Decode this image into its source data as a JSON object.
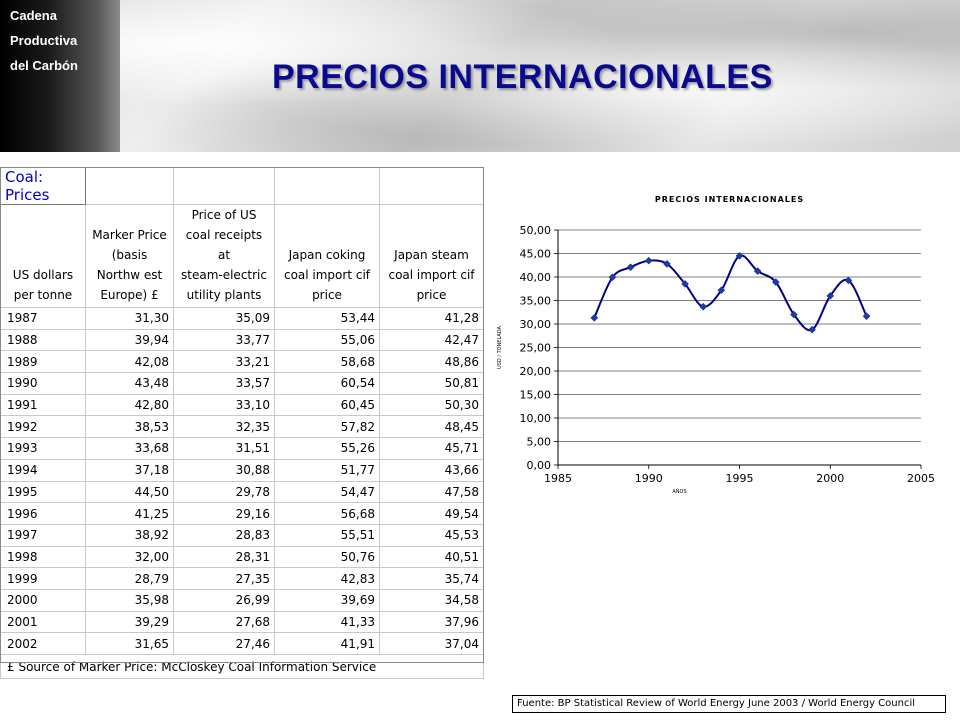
{
  "header": {
    "brand_lines": [
      "Cadena",
      "Productiva",
      "del Carbón"
    ],
    "title": "PRECIOS INTERNACIONALES"
  },
  "table": {
    "title": "Coal:  Prices",
    "columns": [
      "US dollars per tonne",
      "Marker Price (basis Northwest Europe) £",
      "Price of US coal receipts at steam-electric utility plants",
      "Japan coking coal import cif price",
      "Japan steam coal import cif price"
    ],
    "header_lines": [
      [
        "US dollars",
        "per tonne"
      ],
      [
        "Marker Price",
        "(basis",
        "Northw est",
        "Europe) £"
      ],
      [
        "Price of US",
        "coal receipts at",
        "steam-electric",
        "utility plants"
      ],
      [
        "Japan coking",
        "coal import cif",
        "price"
      ],
      [
        "Japan steam",
        "coal import cif",
        "price"
      ]
    ],
    "rows": [
      [
        "1987",
        "31,30",
        "35,09",
        "53,44",
        "41,28"
      ],
      [
        "1988",
        "39,94",
        "33,77",
        "55,06",
        "42,47"
      ],
      [
        "1989",
        "42,08",
        "33,21",
        "58,68",
        "48,86"
      ],
      [
        "1990",
        "43,48",
        "33,57",
        "60,54",
        "50,81"
      ],
      [
        "1991",
        "42,80",
        "33,10",
        "60,45",
        "50,30"
      ],
      [
        "1992",
        "38,53",
        "32,35",
        "57,82",
        "48,45"
      ],
      [
        "1993",
        "33,68",
        "31,51",
        "55,26",
        "45,71"
      ],
      [
        "1994",
        "37,18",
        "30,88",
        "51,77",
        "43,66"
      ],
      [
        "1995",
        "44,50",
        "29,78",
        "54,47",
        "47,58"
      ],
      [
        "1996",
        "41,25",
        "29,16",
        "56,68",
        "49,54"
      ],
      [
        "1997",
        "38,92",
        "28,83",
        "55,51",
        "45,53"
      ],
      [
        "1998",
        "32,00",
        "28,31",
        "50,76",
        "40,51"
      ],
      [
        "1999",
        "28,79",
        "27,35",
        "42,83",
        "35,74"
      ],
      [
        "2000",
        "35,98",
        "26,99",
        "39,69",
        "34,58"
      ],
      [
        "2001",
        "39,29",
        "27,68",
        "41,33",
        "37,96"
      ],
      [
        "2002",
        "31,65",
        "27,46",
        "41,91",
        "37,04"
      ]
    ],
    "note": "£ Source of Marker Price: McCloskey Coal Information Service"
  },
  "chart_data": {
    "type": "line",
    "title": "PRECIOS INTERNACIONALES",
    "xlabel": "AÑOS",
    "ylabel": "USD / TONELADA",
    "x": [
      1987,
      1988,
      1989,
      1990,
      1991,
      1992,
      1993,
      1994,
      1995,
      1996,
      1997,
      1998,
      1999,
      2000,
      2001,
      2002
    ],
    "values": [
      31.3,
      39.94,
      42.08,
      43.48,
      42.8,
      38.53,
      33.68,
      37.18,
      44.5,
      41.25,
      38.92,
      32.0,
      28.79,
      35.98,
      39.29,
      31.65
    ],
    "xlim": [
      1985,
      2005
    ],
    "ylim": [
      0,
      50
    ],
    "xticks": [
      "1985",
      "1990",
      "1995",
      "2000",
      "2005"
    ],
    "yticks": [
      "0,00",
      "5,00",
      "10,00",
      "15,00",
      "20,00",
      "25,00",
      "30,00",
      "35,00",
      "40,00",
      "45,00",
      "50,00"
    ],
    "grid": true,
    "line_color": "#000080",
    "marker_color": "#1a3cb0",
    "smooth": true
  },
  "source": "Fuente: BP Statistical Review  of World Energy June 2003 / World Energy Council",
  "colors": {
    "title": "#0a0a90",
    "table_title": "#0000cc"
  }
}
